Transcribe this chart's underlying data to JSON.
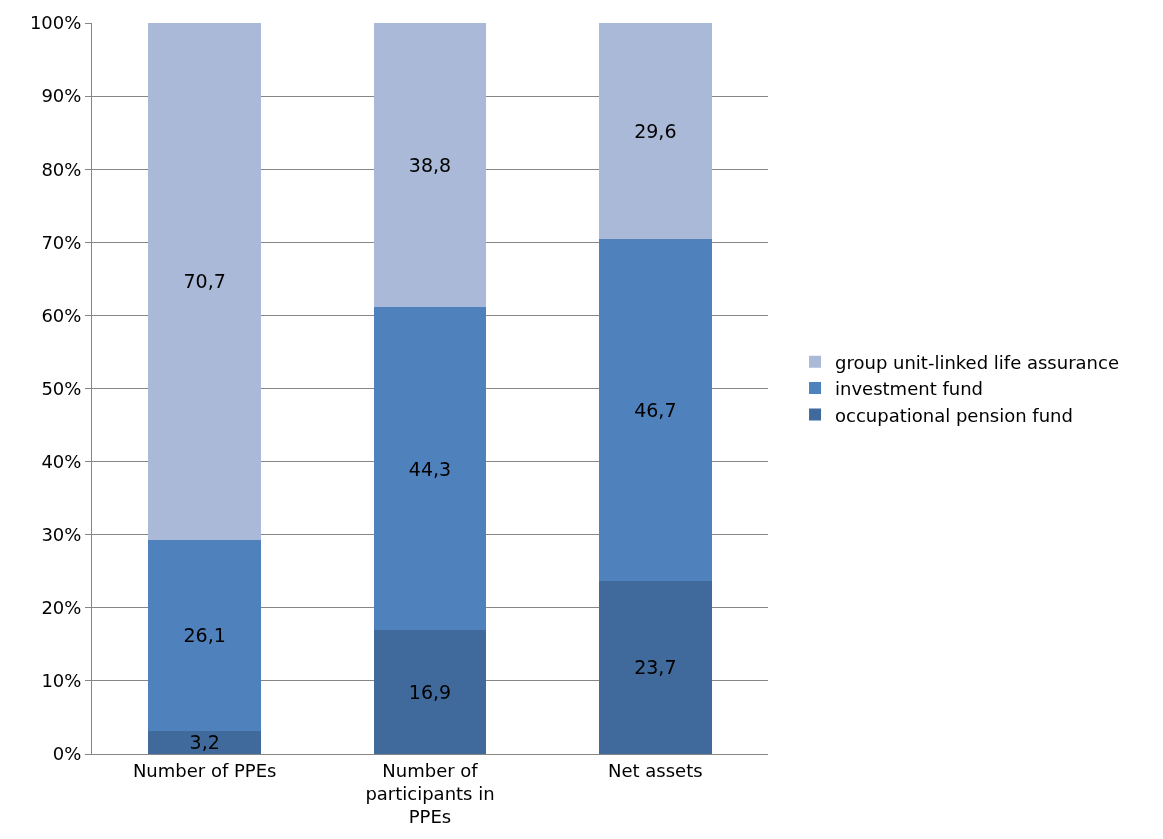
{
  "chart_data": {
    "type": "bar",
    "stacked": true,
    "categories": [
      "Number of PPEs",
      "Number of participants in PPEs",
      "Net assets"
    ],
    "series": [
      {
        "name": "occupational pension fund",
        "color": "#3f6a9b",
        "values": [
          3.2,
          16.9,
          23.7
        ],
        "value_labels": [
          "3,2",
          "16,9",
          "23,7"
        ]
      },
      {
        "name": "investment fund",
        "color": "#4f81bd",
        "values": [
          26.1,
          44.3,
          46.7
        ],
        "value_labels": [
          "26,1",
          "44,3",
          "46,7"
        ]
      },
      {
        "name": "group unit-linked life assurance",
        "color": "#aab9d7",
        "values": [
          70.7,
          38.8,
          29.6
        ],
        "value_labels": [
          "70,7",
          "38,8",
          "29,6"
        ]
      }
    ],
    "ylim": [
      0,
      100
    ],
    "yticks": [
      {
        "value": 0,
        "label": "0%"
      },
      {
        "value": 10,
        "label": "10%"
      },
      {
        "value": 20,
        "label": "20%"
      },
      {
        "value": 30,
        "label": "30%"
      },
      {
        "value": 40,
        "label": "40%"
      },
      {
        "value": 50,
        "label": "50%"
      },
      {
        "value": 60,
        "label": "60%"
      },
      {
        "value": 70,
        "label": "70%"
      },
      {
        "value": 80,
        "label": "80%"
      },
      {
        "value": 90,
        "label": "90%"
      },
      {
        "value": 100,
        "label": "100%"
      }
    ],
    "grid": "y",
    "legend": "right"
  }
}
